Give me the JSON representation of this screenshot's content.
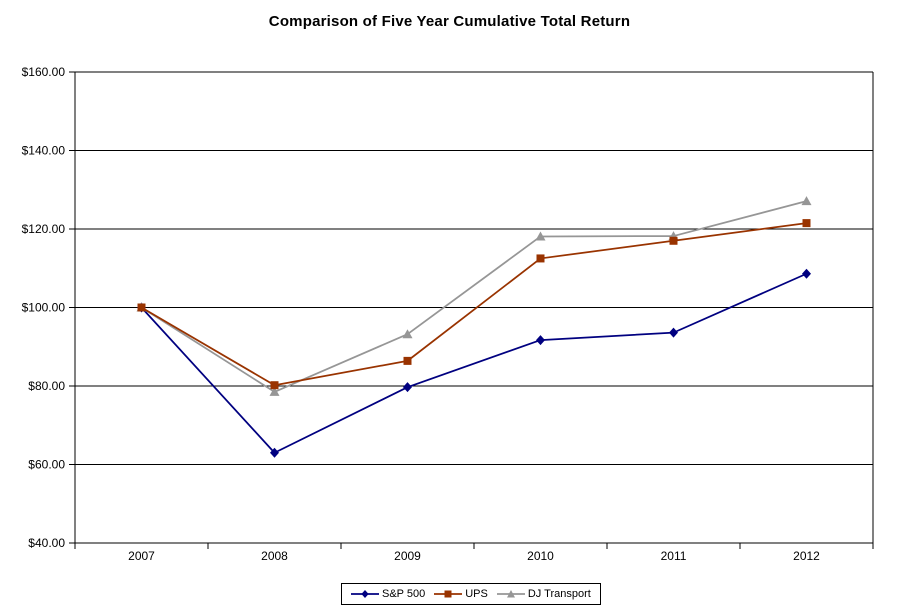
{
  "chart_data": {
    "type": "line",
    "title": "Comparison of Five Year Cumulative Total Return",
    "categories": [
      "2007",
      "2008",
      "2009",
      "2010",
      "2011",
      "2012"
    ],
    "series": [
      {
        "name": "S&P 500",
        "color": "#000080",
        "marker": "diamond",
        "values": [
          100,
          63.0,
          79.7,
          91.7,
          93.6,
          108.6
        ]
      },
      {
        "name": "UPS",
        "color": "#993300",
        "marker": "square",
        "values": [
          100,
          80.2,
          86.4,
          112.5,
          117.0,
          121.5
        ]
      },
      {
        "name": "DJ Transport",
        "color": "#969696",
        "marker": "triangle",
        "values": [
          100,
          78.5,
          93.2,
          118.1,
          118.2,
          127.1
        ]
      }
    ],
    "y_axis": {
      "min": 40,
      "max": 160,
      "step": 20,
      "tick_labels": [
        "$160.00",
        "$140.00",
        "$120.00",
        "$100.00",
        "$80.00",
        "$60.00",
        "$40.00"
      ]
    },
    "grid": true,
    "legend_position": "bottom",
    "axis_color": "#000000",
    "text_color": "#000000",
    "background_color": "#ffffff"
  }
}
